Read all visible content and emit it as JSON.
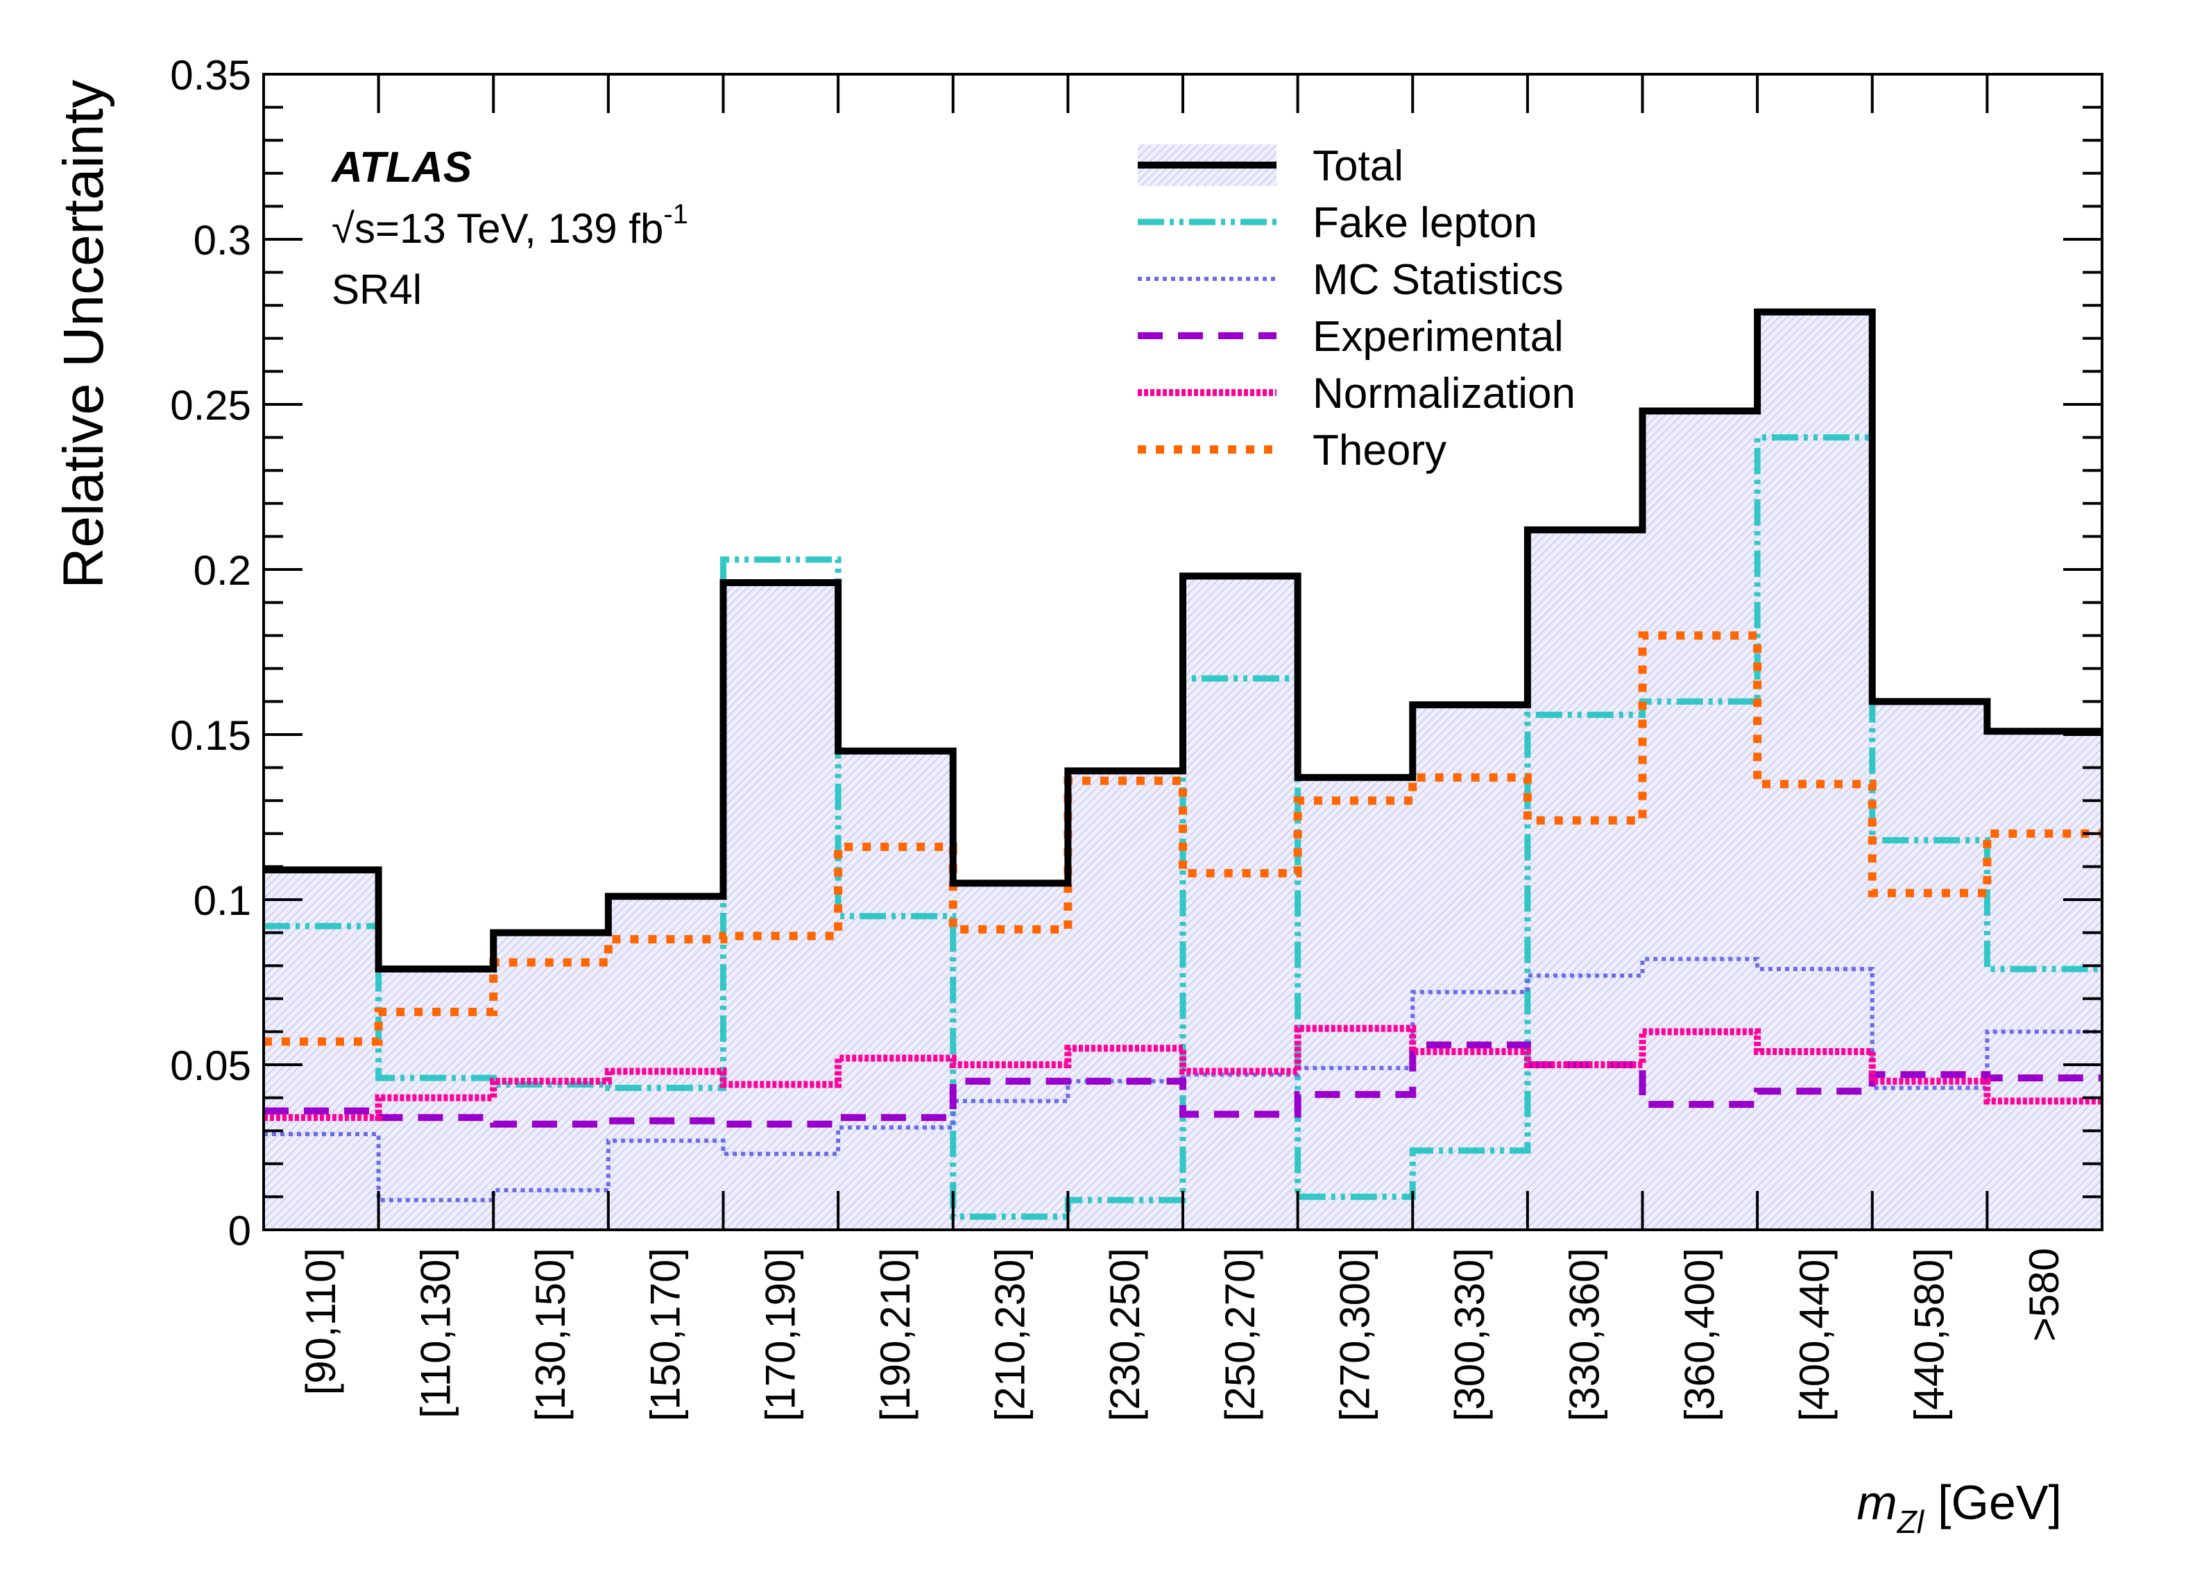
{
  "chart_data": {
    "type": "step",
    "ylabel": "Relative Uncertainty",
    "xlabel_var": "m",
    "xlabel_sub": "Zl",
    "xlabel_unit": "[GeV]",
    "ylim": [
      0,
      0.35
    ],
    "yticks": [
      "0",
      "0.05",
      "0.1",
      "0.15",
      "0.2",
      "0.25",
      "0.3",
      "0.35"
    ],
    "categories": [
      "[90,110]",
      "[110,130]",
      "[130,150]",
      "[150,170]",
      "[170,190]",
      "[190,210]",
      "[210,230]",
      "[230,250]",
      "[250,270]",
      "[270,300]",
      "[300,330]",
      "[330,360]",
      "[360,400]",
      "[400,440]",
      "[440,580]",
      ">580"
    ],
    "annotations": {
      "experiment": "ATLAS",
      "energy_sqrt": "√",
      "energy_rest": "s=13 TeV, 139 fb",
      "energy_sup": "-1",
      "region": "SR4l"
    },
    "legend_position": "top-center",
    "series": [
      {
        "name": "Total",
        "color": "#000000",
        "style": "solid",
        "band_color": "#c8c8f5",
        "values": [
          0.109,
          0.079,
          0.09,
          0.101,
          0.196,
          0.145,
          0.105,
          0.139,
          0.198,
          0.137,
          0.159,
          0.212,
          0.248,
          0.278,
          0.16,
          0.151
        ]
      },
      {
        "name": "Fake lepton",
        "color": "#33c6c6",
        "style": "dashdot",
        "values": [
          0.092,
          0.046,
          0.044,
          0.043,
          0.203,
          0.095,
          0.004,
          0.009,
          0.167,
          0.01,
          0.024,
          0.156,
          0.16,
          0.24,
          0.118,
          0.079
        ]
      },
      {
        "name": "MC Statistics",
        "color": "#6b6be6",
        "style": "dotted",
        "values": [
          0.029,
          0.009,
          0.012,
          0.027,
          0.023,
          0.031,
          0.039,
          0.045,
          0.047,
          0.049,
          0.072,
          0.077,
          0.082,
          0.079,
          0.043,
          0.06
        ]
      },
      {
        "name": "Experimental",
        "color": "#9900cc",
        "style": "dashed",
        "values": [
          0.036,
          0.034,
          0.032,
          0.033,
          0.032,
          0.034,
          0.045,
          0.045,
          0.035,
          0.041,
          0.056,
          0.05,
          0.038,
          0.042,
          0.047,
          0.046
        ]
      },
      {
        "name": "Normalization",
        "color": "#ff0099",
        "style": "densedot",
        "values": [
          0.034,
          0.04,
          0.045,
          0.048,
          0.044,
          0.052,
          0.05,
          0.055,
          0.048,
          0.061,
          0.054,
          0.05,
          0.06,
          0.054,
          0.045,
          0.039
        ]
      },
      {
        "name": "Theory",
        "color": "#ff6600",
        "style": "squaredot",
        "values": [
          0.057,
          0.066,
          0.081,
          0.088,
          0.089,
          0.116,
          0.091,
          0.136,
          0.108,
          0.13,
          0.137,
          0.124,
          0.18,
          0.135,
          0.102,
          0.12
        ]
      }
    ]
  }
}
